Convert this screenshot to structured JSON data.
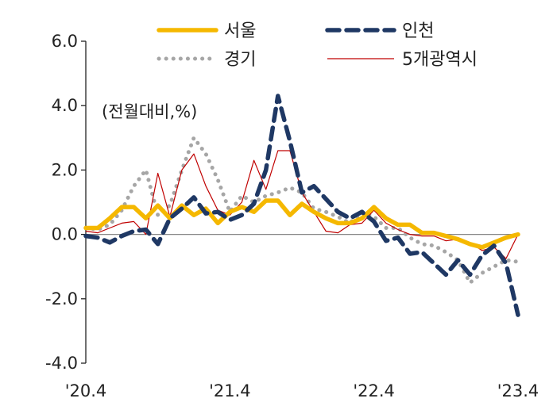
{
  "chart_data": {
    "type": "line",
    "unit_note": "(전월대비,%)",
    "ylim": [
      -4.0,
      6.0
    ],
    "yticks": [
      "6.0",
      "4.0",
      "2.0",
      "0.0",
      "-2.0",
      "-4.0"
    ],
    "xticks": [
      "'20.4",
      "'21.4",
      "'22.4",
      "'23.4"
    ],
    "grid": false,
    "legend_position": "top",
    "x": [
      "'20.4",
      "'20.5",
      "'20.6",
      "'20.7",
      "'20.8",
      "'20.9",
      "'20.10",
      "'20.11",
      "'20.12",
      "'21.1",
      "'21.2",
      "'21.3",
      "'21.4",
      "'21.5",
      "'21.6",
      "'21.7",
      "'21.8",
      "'21.9",
      "'21.10",
      "'21.11",
      "'21.12",
      "'22.1",
      "'22.2",
      "'22.3",
      "'22.4",
      "'22.5",
      "'22.6",
      "'22.7",
      "'22.8",
      "'22.9",
      "'22.10",
      "'22.11",
      "'22.12",
      "'23.1",
      "'23.2",
      "'23.3",
      "'23.4"
    ],
    "series": [
      {
        "name": "서울",
        "color": "#f5b800",
        "style": "solid-thick",
        "values": [
          0.2,
          0.2,
          0.5,
          0.85,
          0.85,
          0.5,
          0.9,
          0.5,
          0.9,
          0.6,
          0.8,
          0.35,
          0.7,
          0.85,
          0.7,
          1.05,
          1.05,
          0.6,
          0.95,
          0.7,
          0.5,
          0.35,
          0.35,
          0.5,
          0.85,
          0.5,
          0.3,
          0.3,
          0.05,
          0.05,
          -0.05,
          -0.15,
          -0.3,
          -0.4,
          -0.25,
          -0.1,
          0.0
        ]
      },
      {
        "name": "인천",
        "color": "#1f3864",
        "style": "dashed",
        "values": [
          -0.05,
          -0.1,
          -0.25,
          -0.05,
          0.1,
          0.15,
          -0.3,
          0.5,
          0.8,
          1.15,
          0.65,
          0.7,
          0.45,
          0.6,
          0.95,
          2.0,
          4.3,
          2.9,
          1.3,
          1.5,
          1.1,
          0.7,
          0.5,
          0.7,
          0.4,
          -0.2,
          -0.1,
          -0.6,
          -0.55,
          -0.9,
          -1.25,
          -0.8,
          -1.25,
          -0.65,
          -0.35,
          -0.9,
          -2.5
        ]
      },
      {
        "name": "경기",
        "color": "#a6a6a6",
        "style": "dotted",
        "values": [
          0.2,
          0.15,
          0.3,
          0.75,
          1.5,
          2.0,
          0.6,
          0.9,
          2.0,
          3.0,
          2.5,
          1.7,
          0.7,
          1.2,
          1.0,
          1.2,
          1.3,
          1.45,
          1.3,
          0.8,
          0.7,
          0.55,
          0.35,
          0.7,
          0.55,
          0.2,
          0.2,
          -0.1,
          -0.3,
          -0.35,
          -0.55,
          -0.8,
          -1.5,
          -1.2,
          -1.0,
          -0.8,
          -0.85
        ]
      },
      {
        "name": "5개광역시",
        "color": "#c00000",
        "style": "thin",
        "values": [
          0.1,
          0.05,
          0.2,
          0.35,
          0.4,
          0.0,
          1.9,
          0.55,
          2.0,
          2.5,
          1.5,
          0.75,
          0.6,
          1.0,
          2.3,
          1.4,
          2.6,
          2.6,
          1.3,
          0.7,
          0.1,
          0.05,
          0.3,
          0.35,
          0.75,
          0.35,
          0.15,
          0.0,
          -0.05,
          -0.05,
          -0.2,
          -0.15,
          -0.25,
          -0.5,
          -0.4,
          -0.75,
          0.0
        ]
      }
    ]
  }
}
